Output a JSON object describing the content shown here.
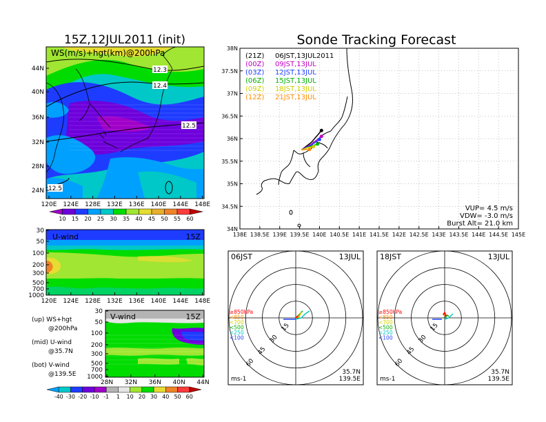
{
  "left_title": "15Z,12JUL2011 (init)",
  "right_title": "Sonde Tracking Forecast",
  "ws_panel": {
    "label": "WS(m/s)+hgt(km)@200hPa",
    "lat_ticks": [
      "44N",
      "40N",
      "36N",
      "32N",
      "28N",
      "24N"
    ],
    "lon_ticks": [
      "120E",
      "124E",
      "128E",
      "132E",
      "136E",
      "140E",
      "144E",
      "148E"
    ],
    "contours": [
      "12.3",
      "12.4",
      "12.5",
      "12.5"
    ],
    "colorbar": [
      "10",
      "15",
      "20",
      "25",
      "30",
      "35",
      "40",
      "45",
      "50",
      "55",
      "60"
    ],
    "colorbar_colors": [
      "#a000c8",
      "#6e00dc",
      "#1e3cff",
      "#00a0ff",
      "#00c8c8",
      "#00dc00",
      "#a0e632",
      "#e6dc32",
      "#e6af2d",
      "#f08228",
      "#fa3c3c",
      "#c00000"
    ]
  },
  "u_panel": {
    "label": "U-wind",
    "time": "15Z",
    "p_ticks": [
      "30",
      "50",
      "100",
      "200",
      "300",
      "500",
      "700",
      "1000"
    ],
    "lon_ticks": [
      "120E",
      "124E",
      "128E",
      "132E",
      "136E",
      "140E",
      "144E",
      "148E"
    ]
  },
  "v_panel": {
    "label": "V-wind",
    "time": "15Z",
    "p_ticks": [
      "30",
      "50",
      "100",
      "200",
      "300",
      "500",
      "700",
      "1000"
    ],
    "lat_ticks": [
      "28N",
      "32N",
      "36N",
      "40N",
      "44N"
    ],
    "colorbar": [
      "-40",
      "-30",
      "-20",
      "-10",
      "-1",
      "1",
      "10",
      "20",
      "30",
      "40",
      "50",
      "60"
    ],
    "colorbar_colors": [
      "#00a0ff",
      "#00c8c8",
      "#1e3cff",
      "#6e00dc",
      "#a000c8",
      "#b4b4b4",
      "#e6e6e6",
      "#a0e632",
      "#00dc00",
      "#e6dc32",
      "#f08228",
      "#fa3c3c",
      "#c00000"
    ]
  },
  "legend_text": [
    "(up) WS+hgt",
    "@200hPa",
    "(mid) U-wind",
    "@35.7N",
    "(bot) V-wind",
    "@139.5E"
  ],
  "map_panel": {
    "lat_ticks": [
      "38N",
      "37.5N",
      "37N",
      "36.5N",
      "36N",
      "35.5N",
      "35N",
      "34.5N",
      "34N"
    ],
    "lon_ticks": [
      "138E",
      "138.5E",
      "139E",
      "139.5E",
      "140E",
      "140.5E",
      "141E",
      "141.5E",
      "142E",
      "142.5E",
      "143E",
      "143.5E",
      "144E",
      "144.5E",
      "145E"
    ],
    "launches": [
      {
        "code": "(21Z)",
        "time": "06JST,13JUL2011",
        "color": "#000000"
      },
      {
        "code": "(00Z)",
        "time": "09JST,13JUL",
        "color": "#c000c0"
      },
      {
        "code": "(03Z)",
        "time": "12JST,13JUL",
        "color": "#2040ff"
      },
      {
        "code": "(06Z)",
        "time": "15JST,13JUL",
        "color": "#00b000"
      },
      {
        "code": "(09Z)",
        "time": "18JST,13JUL",
        "color": "#d0d000"
      },
      {
        "code": "(12Z)",
        "time": "21JST,13JUL",
        "color": "#ff8c00"
      }
    ],
    "info": [
      "VUP= 4.5 m/s",
      "VDW= -3.0 m/s",
      "Burst Alt= 21.0 km"
    ]
  },
  "hodo_left": {
    "time": "06JST",
    "date": "13JUL",
    "ring_labels": [
      "15",
      "30",
      "45",
      "60"
    ],
    "levels": [
      {
        "label": "≥850hPa",
        "color": "#ff0000"
      },
      {
        "label": "<850",
        "color": "#ff8c00"
      },
      {
        "label": "<700",
        "color": "#d0d000"
      },
      {
        "label": "<500",
        "color": "#00b000"
      },
      {
        "label": "<250",
        "color": "#00c8c8"
      },
      {
        "label": "<100",
        "color": "#2040ff"
      }
    ],
    "unit": "ms-1",
    "lat": "35.7N",
    "lon": "139.5E"
  },
  "hodo_right": {
    "time": "18JST",
    "date": "13JUL",
    "ring_labels": [
      "15",
      "30",
      "45",
      "60"
    ],
    "levels": [
      {
        "label": "≥850hPa",
        "color": "#ff0000"
      },
      {
        "label": "<850",
        "color": "#ff8c00"
      },
      {
        "label": "<700",
        "color": "#d0d000"
      },
      {
        "label": "<500",
        "color": "#00b000"
      },
      {
        "label": "<250",
        "color": "#00c8c8"
      },
      {
        "label": "<100",
        "color": "#2040ff"
      }
    ],
    "unit": "ms-1",
    "lat": "35.7N",
    "lon": "139.5E"
  },
  "chart_data": [
    {
      "type": "heatmap",
      "title": "15Z,12JUL2011 (init)",
      "label": "WS(m/s)+hgt(km)@200hPa",
      "x_ticks": [
        "120E",
        "124E",
        "128E",
        "132E",
        "136E",
        "140E",
        "144E",
        "148E"
      ],
      "y_ticks": [
        "24N",
        "28N",
        "32N",
        "36N",
        "40N",
        "44N"
      ],
      "contour_labels": [
        "12.3",
        "12.4",
        "12.5",
        "12.5"
      ],
      "colorbar": [
        10,
        15,
        20,
        25,
        30,
        35,
        40,
        45,
        50,
        55,
        60
      ]
    },
    {
      "type": "heatmap",
      "label": "U-wind",
      "time": "15Z",
      "x_ticks": [
        "120E",
        "124E",
        "128E",
        "132E",
        "136E",
        "140E",
        "144E",
        "148E"
      ],
      "y_ticks": [
        30,
        50,
        100,
        200,
        300,
        500,
        700,
        1000
      ]
    },
    {
      "type": "heatmap",
      "label": "V-wind",
      "time": "15Z",
      "x_ticks": [
        "28N",
        "32N",
        "36N",
        "40N",
        "44N"
      ],
      "y_ticks": [
        30,
        50,
        100,
        200,
        300,
        500,
        700,
        1000
      ],
      "colorbar": [
        -40,
        -30,
        -20,
        -10,
        -1,
        1,
        10,
        20,
        30,
        40,
        50,
        60
      ]
    },
    {
      "type": "line",
      "title": "Sonde Tracking Forecast",
      "xlim": [
        138,
        145
      ],
      "ylim": [
        34,
        38
      ],
      "series": [
        {
          "name": "(21Z) 06JST,13JUL2011",
          "x": [
            139.55,
            139.8,
            140.05
          ],
          "y": [
            35.75,
            35.92,
            36.18
          ]
        },
        {
          "name": "(00Z) 09JST,13JUL",
          "x": [
            139.55,
            139.8,
            140.05
          ],
          "y": [
            35.75,
            35.88,
            36.05
          ]
        },
        {
          "name": "(03Z) 12JST,13JUL",
          "x": [
            139.55,
            139.8,
            140.0
          ],
          "y": [
            35.75,
            35.86,
            35.98
          ]
        },
        {
          "name": "(06Z) 15JST,13JUL",
          "x": [
            139.55,
            139.75,
            139.95
          ],
          "y": [
            35.75,
            35.82,
            35.88
          ]
        },
        {
          "name": "(09Z) 18JST,13JUL",
          "x": [
            139.55,
            139.7,
            139.85
          ],
          "y": [
            35.75,
            35.8,
            35.82
          ]
        },
        {
          "name": "(12Z) 21JST,13JUL",
          "x": [
            139.55,
            139.65,
            139.75
          ],
          "y": [
            35.75,
            35.76,
            35.76
          ]
        }
      ]
    },
    {
      "type": "line",
      "label": "06JST 13JUL",
      "rings": [
        15,
        30,
        45,
        60
      ]
    },
    {
      "type": "line",
      "label": "18JST 13JUL",
      "rings": [
        15,
        30,
        45,
        60
      ]
    }
  ]
}
